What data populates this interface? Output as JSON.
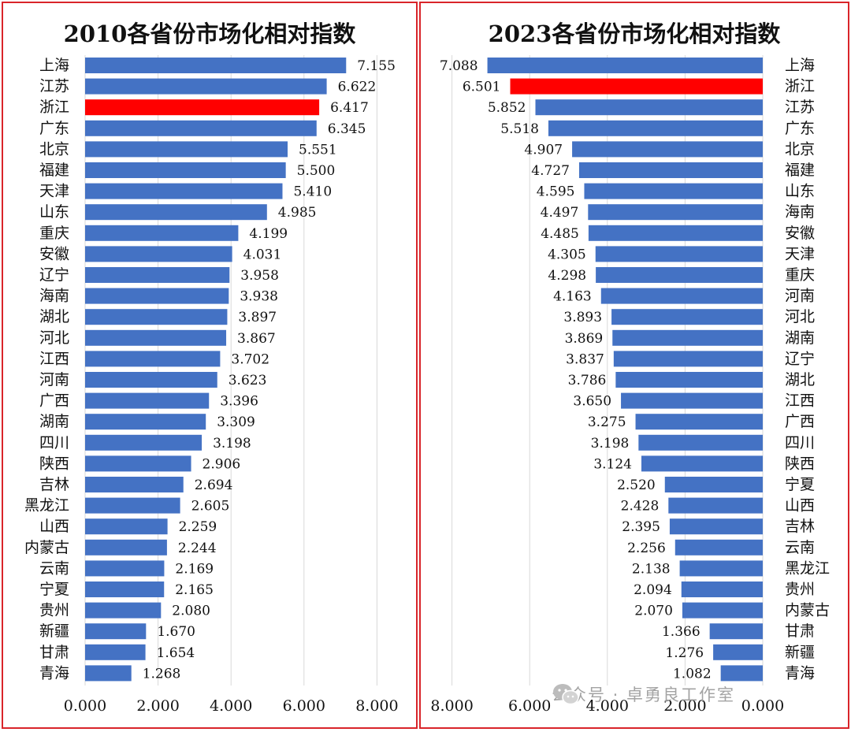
{
  "watermark": {
    "text": "公众号 · 卓勇良工作室",
    "icon": "wechat-icon"
  },
  "colors": {
    "bar": "#4472c4",
    "highlight": "#ff0000",
    "grid": "#d9d9d9",
    "frame": "#d9252a"
  },
  "chart_data": [
    {
      "type": "bar",
      "orientation": "horizontal",
      "title": "2010各省份市场化相对指数",
      "xlim": [
        0,
        8
      ],
      "xticks": [
        "0.000",
        "2.000",
        "4.000",
        "6.000",
        "8.000"
      ],
      "highlight": "浙江",
      "categories": [
        "上海",
        "江苏",
        "浙江",
        "广东",
        "北京",
        "福建",
        "天津",
        "山东",
        "重庆",
        "安徽",
        "辽宁",
        "海南",
        "湖北",
        "河北",
        "江西",
        "河南",
        "广西",
        "湖南",
        "四川",
        "陕西",
        "吉林",
        "黑龙江",
        "山西",
        "内蒙古",
        "云南",
        "宁夏",
        "贵州",
        "新疆",
        "甘肃",
        "青海"
      ],
      "values": [
        7.155,
        6.622,
        6.417,
        6.345,
        5.551,
        5.5,
        5.41,
        4.985,
        4.199,
        4.031,
        3.958,
        3.938,
        3.897,
        3.867,
        3.702,
        3.623,
        3.396,
        3.309,
        3.198,
        2.906,
        2.694,
        2.605,
        2.259,
        2.244,
        2.169,
        2.165,
        2.08,
        1.67,
        1.654,
        1.268
      ],
      "labels": [
        "7.155",
        "6.622",
        "6.417",
        "6.345",
        "5.551",
        "5.500",
        "5.410",
        "4.985",
        "4.199",
        "4.031",
        "3.958",
        "3.938",
        "3.897",
        "3.867",
        "3.702",
        "3.623",
        "3.396",
        "3.309",
        "3.198",
        "2.906",
        "2.694",
        "2.605",
        "2.259",
        "2.244",
        "2.169",
        "2.165",
        "2.080",
        "1.670",
        "1.654",
        "1.268"
      ]
    },
    {
      "type": "bar",
      "orientation": "horizontal",
      "reversed": true,
      "title": "2023各省份市场化相对指数",
      "xlim": [
        0,
        8
      ],
      "xticks": [
        "8.000",
        "6.000",
        "4.000",
        "2.000",
        "0.000"
      ],
      "highlight": "浙江",
      "categories": [
        "上海",
        "浙江",
        "江苏",
        "广东",
        "北京",
        "福建",
        "山东",
        "海南",
        "安徽",
        "天津",
        "重庆",
        "河南",
        "河北",
        "湖南",
        "辽宁",
        "湖北",
        "江西",
        "广西",
        "四川",
        "陕西",
        "宁夏",
        "山西",
        "吉林",
        "云南",
        "黑龙江",
        "贵州",
        "内蒙古",
        "甘肃",
        "新疆",
        "青海"
      ],
      "values": [
        7.088,
        6.501,
        5.852,
        5.518,
        4.907,
        4.727,
        4.595,
        4.497,
        4.485,
        4.305,
        4.298,
        4.163,
        3.893,
        3.869,
        3.837,
        3.786,
        3.65,
        3.275,
        3.198,
        3.124,
        2.52,
        2.428,
        2.395,
        2.256,
        2.138,
        2.094,
        2.07,
        1.366,
        1.276,
        1.082
      ],
      "labels": [
        "7.088",
        "6.501",
        "5.852",
        "5.518",
        "4.907",
        "4.727",
        "4.595",
        "4.497",
        "4.485",
        "4.305",
        "4.298",
        "4.163",
        "3.893",
        "3.869",
        "3.837",
        "3.786",
        "3.650",
        "3.275",
        "3.198",
        "3.124",
        "2.520",
        "2.428",
        "2.395",
        "2.256",
        "2.138",
        "2.094",
        "2.070",
        "1.366",
        "1.276",
        "1.082"
      ]
    }
  ]
}
